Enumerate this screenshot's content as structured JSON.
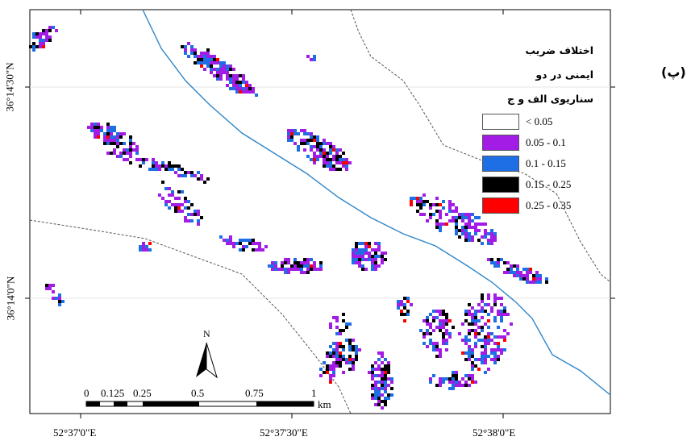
{
  "panel_label": "(پ)",
  "legend": {
    "title_lines": [
      "اختلاف ضریب",
      "ایمنی در دو",
      "سناریوی الف و ج"
    ],
    "items": [
      {
        "label": "< 0.05",
        "color": "#ffffff"
      },
      {
        "label": "0.05 - 0.1",
        "color": "#a31ce6"
      },
      {
        "label": "0.1 - 0.15",
        "color": "#1e6ee6"
      },
      {
        "label": "0.15 - 0.25",
        "color": "#000000"
      },
      {
        "label": "0.25 - 0.35",
        "color": "#ff0000"
      }
    ]
  },
  "axes": {
    "x_ticks": [
      "52°37'0\"E",
      "52°37'30\"E",
      "52°38'0\"E"
    ],
    "y_ticks": [
      "36°14'30\"N",
      "36°14'0\"N"
    ]
  },
  "north_arrow": {
    "label": "N"
  },
  "scale_bar": {
    "labels": [
      "0",
      "0.125",
      "0.25",
      "0.5",
      "0.75",
      "1"
    ],
    "unit": "km"
  },
  "colors": {
    "river": "#2f86c8",
    "boundary": "#555555",
    "frame": "#000000"
  }
}
